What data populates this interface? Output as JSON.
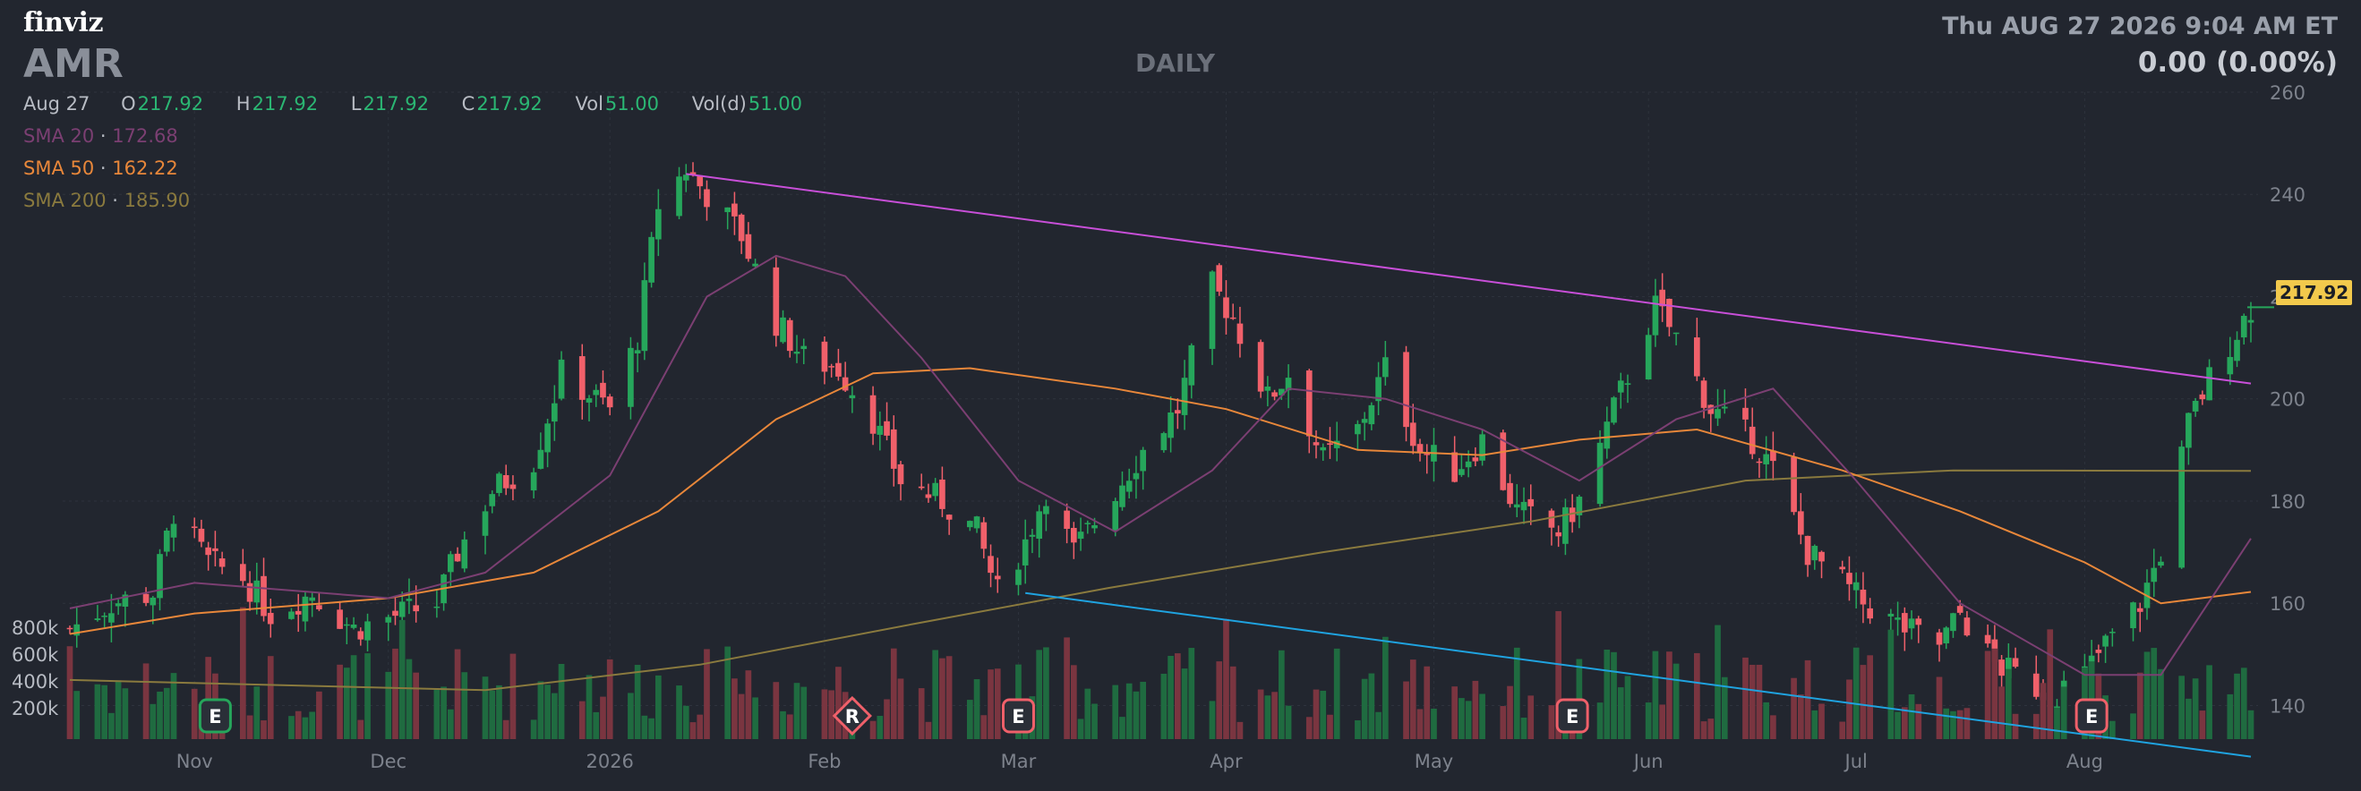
{
  "header": {
    "logo": "finviz",
    "ticker": "AMR",
    "timeframe": "DAILY",
    "datetime": "Thu AUG 27 2026 9:04 AM ET",
    "change": "0.00 (0.00%)"
  },
  "ohlc": {
    "date": "Aug 27",
    "open_key": "O",
    "open": "217.92",
    "high_key": "H",
    "high": "217.92",
    "low_key": "L",
    "low": "217.92",
    "close_key": "C",
    "close": "217.92",
    "vol_key": "Vol",
    "vol": "51.00",
    "vold_key": "Vol(d)",
    "vold": "51.00"
  },
  "sma": [
    {
      "label": "SMA 20",
      "sep": "·",
      "value": "172.68",
      "color": "#7b3f72"
    },
    {
      "label": "SMA 50",
      "sep": "·",
      "value": "162.22",
      "color": "#e8873a"
    },
    {
      "label": "SMA 200",
      "sep": "·",
      "value": "185.90",
      "color": "#8a7a3e"
    }
  ],
  "colors": {
    "up": "#26a65b",
    "down": "#f0606a",
    "vol_up": "#1f6b40",
    "vol_down": "#7a3540",
    "resistance": "#c84fd8",
    "support": "#1fa3e0",
    "badge": "#f2c94c"
  },
  "current_price_label": "217.92",
  "volume_axis": [
    "800k",
    "600k",
    "400k",
    "200k"
  ],
  "chart_data": {
    "type": "candlestick",
    "ylim": [
      128,
      260
    ],
    "y_ticks": [
      140,
      160,
      180,
      200,
      220,
      240,
      260
    ],
    "x_labels": [
      {
        "label": "Nov",
        "date": "2025-11-03"
      },
      {
        "label": "Dec",
        "date": "2025-12-01"
      },
      {
        "label": "2026",
        "date": "2026-01-02"
      },
      {
        "label": "Feb",
        "date": "2026-02-02"
      },
      {
        "label": "Mar",
        "date": "2026-03-02"
      },
      {
        "label": "Apr",
        "date": "2026-04-01"
      },
      {
        "label": "May",
        "date": "2026-05-01"
      },
      {
        "label": "Jun",
        "date": "2026-06-01"
      },
      {
        "label": "Jul",
        "date": "2026-07-01"
      },
      {
        "label": "Aug",
        "date": "2026-08-03"
      }
    ],
    "close_path": [
      [
        "2025-10-16",
        155
      ],
      [
        "2025-10-22",
        160
      ],
      [
        "2025-10-28",
        162
      ],
      [
        "2025-10-31",
        178
      ],
      [
        "2025-11-05",
        168
      ],
      [
        "2025-11-10",
        165
      ],
      [
        "2025-11-14",
        158
      ],
      [
        "2025-11-20",
        162
      ],
      [
        "2025-11-26",
        155
      ],
      [
        "2025-12-03",
        158
      ],
      [
        "2025-12-08",
        160
      ],
      [
        "2025-12-11",
        170
      ],
      [
        "2025-12-16",
        182
      ],
      [
        "2025-12-22",
        188
      ],
      [
        "2025-12-26",
        205
      ],
      [
        "2026-01-02",
        198
      ],
      [
        "2026-01-06",
        212
      ],
      [
        "2026-01-09",
        238
      ],
      [
        "2026-01-13",
        245
      ],
      [
        "2026-01-16",
        240
      ],
      [
        "2026-01-21",
        232
      ],
      [
        "2026-01-26",
        215
      ],
      [
        "2026-01-30",
        208
      ],
      [
        "2026-02-04",
        206
      ],
      [
        "2026-02-09",
        196
      ],
      [
        "2026-02-13",
        184
      ],
      [
        "2026-02-19",
        180
      ],
      [
        "2026-02-24",
        174
      ],
      [
        "2026-02-27",
        162
      ],
      [
        "2026-03-03",
        172
      ],
      [
        "2026-03-06",
        182
      ],
      [
        "2026-03-10",
        170
      ],
      [
        "2026-03-16",
        182
      ],
      [
        "2026-03-20",
        190
      ],
      [
        "2026-03-25",
        198
      ],
      [
        "2026-03-30",
        222
      ],
      [
        "2026-04-02",
        216
      ],
      [
        "2026-04-07",
        200
      ],
      [
        "2026-04-10",
        205
      ],
      [
        "2026-04-15",
        188
      ],
      [
        "2026-04-20",
        194
      ],
      [
        "2026-04-24",
        206
      ],
      [
        "2026-04-29",
        190
      ],
      [
        "2026-05-04",
        186
      ],
      [
        "2026-05-08",
        192
      ],
      [
        "2026-05-13",
        178
      ],
      [
        "2026-05-19",
        174
      ],
      [
        "2026-05-22",
        180
      ],
      [
        "2026-05-27",
        198
      ],
      [
        "2026-06-02",
        218
      ],
      [
        "2026-06-05",
        212
      ],
      [
        "2026-06-10",
        198
      ],
      [
        "2026-06-16",
        192
      ],
      [
        "2026-06-19",
        186
      ],
      [
        "2026-06-24",
        170
      ],
      [
        "2026-06-29",
        164
      ],
      [
        "2026-07-02",
        160
      ],
      [
        "2026-07-08",
        155
      ],
      [
        "2026-07-13",
        152
      ],
      [
        "2026-07-16",
        158
      ],
      [
        "2026-07-21",
        148
      ],
      [
        "2026-07-24",
        146
      ],
      [
        "2026-07-29",
        142
      ],
      [
        "2026-08-03",
        146
      ],
      [
        "2026-08-06",
        152
      ],
      [
        "2026-08-11",
        160
      ],
      [
        "2026-08-14",
        170
      ],
      [
        "2026-08-18",
        195
      ],
      [
        "2026-08-21",
        204
      ],
      [
        "2026-08-27",
        217.92
      ]
    ],
    "sma20_path": [
      [
        "2025-10-16",
        159
      ],
      [
        "2025-11-03",
        164
      ],
      [
        "2025-12-01",
        161
      ],
      [
        "2025-12-15",
        166
      ],
      [
        "2026-01-02",
        185
      ],
      [
        "2026-01-16",
        220
      ],
      [
        "2026-01-26",
        228
      ],
      [
        "2026-02-05",
        224
      ],
      [
        "2026-02-16",
        208
      ],
      [
        "2026-03-02",
        184
      ],
      [
        "2026-03-16",
        174
      ],
      [
        "2026-03-30",
        186
      ],
      [
        "2026-04-10",
        202
      ],
      [
        "2026-04-24",
        200
      ],
      [
        "2026-05-08",
        194
      ],
      [
        "2026-05-22",
        184
      ],
      [
        "2026-06-05",
        196
      ],
      [
        "2026-06-19",
        202
      ],
      [
        "2026-07-01",
        184
      ],
      [
        "2026-07-16",
        160
      ],
      [
        "2026-08-03",
        146
      ],
      [
        "2026-08-14",
        146
      ],
      [
        "2026-08-27",
        172.68
      ]
    ],
    "sma50_path": [
      [
        "2025-10-16",
        154
      ],
      [
        "2025-11-03",
        158
      ],
      [
        "2025-12-01",
        161
      ],
      [
        "2025-12-22",
        166
      ],
      [
        "2026-01-09",
        178
      ],
      [
        "2026-01-26",
        196
      ],
      [
        "2026-02-09",
        205
      ],
      [
        "2026-02-23",
        206
      ],
      [
        "2026-03-16",
        202
      ],
      [
        "2026-04-01",
        198
      ],
      [
        "2026-04-20",
        190
      ],
      [
        "2026-05-08",
        189
      ],
      [
        "2026-05-22",
        192
      ],
      [
        "2026-06-08",
        194
      ],
      [
        "2026-06-29",
        186
      ],
      [
        "2026-07-16",
        178
      ],
      [
        "2026-08-03",
        168
      ],
      [
        "2026-08-14",
        160
      ],
      [
        "2026-08-27",
        162.22
      ]
    ],
    "sma200_path": [
      [
        "2025-10-16",
        145
      ],
      [
        "2025-11-15",
        144
      ],
      [
        "2025-12-15",
        143
      ],
      [
        "2026-01-15",
        148
      ],
      [
        "2026-02-15",
        156
      ],
      [
        "2026-03-15",
        163
      ],
      [
        "2026-04-15",
        170
      ],
      [
        "2026-05-15",
        176
      ],
      [
        "2026-06-15",
        184
      ],
      [
        "2026-07-15",
        186
      ],
      [
        "2026-08-27",
        185.9
      ]
    ],
    "trendlines": [
      {
        "name": "resistance",
        "from": [
          "2026-01-13",
          244
        ],
        "to": [
          "2026-08-27",
          203
        ]
      },
      {
        "name": "support",
        "from": [
          "2026-03-03",
          162
        ],
        "to": [
          "2026-08-27",
          130
        ]
      }
    ],
    "events": [
      {
        "label": "E",
        "date": "2025-11-06",
        "kind": "earnings"
      },
      {
        "label": "R",
        "date": "2026-02-06",
        "kind": "revision"
      },
      {
        "label": "E",
        "date": "2026-03-02",
        "kind": "earnings"
      },
      {
        "label": "E",
        "date": "2026-05-21",
        "kind": "earnings"
      },
      {
        "label": "E",
        "date": "2026-08-04",
        "kind": "earnings"
      }
    ],
    "volume_ylim": [
      0,
      900000
    ]
  }
}
